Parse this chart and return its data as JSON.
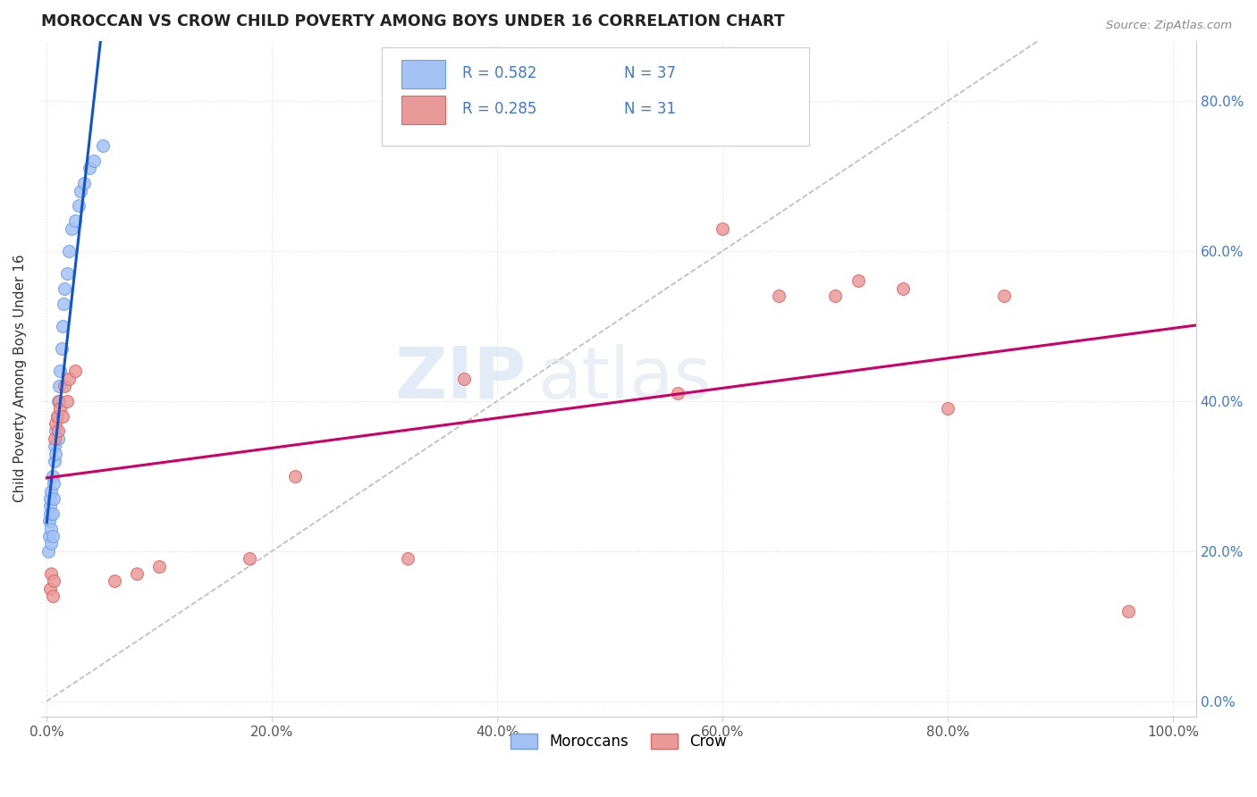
{
  "title": "MOROCCAN VS CROW CHILD POVERTY AMONG BOYS UNDER 16 CORRELATION CHART",
  "source": "Source: ZipAtlas.com",
  "xlabel": "",
  "ylabel": "Child Poverty Among Boys Under 16",
  "xlim": [
    -0.005,
    1.02
  ],
  "ylim": [
    -0.02,
    0.88
  ],
  "x_ticks": [
    0.0,
    0.2,
    0.4,
    0.6,
    0.8,
    1.0
  ],
  "x_tick_labels": [
    "0.0%",
    "20.0%",
    "40.0%",
    "60.0%",
    "80.0%",
    "100.0%"
  ],
  "y_ticks": [
    0.0,
    0.2,
    0.4,
    0.6,
    0.8
  ],
  "y_tick_labels": [
    "0.0%",
    "20.0%",
    "40.0%",
    "60.0%",
    "80.0%"
  ],
  "moroccan_R": "0.582",
  "moroccan_N": "37",
  "crow_R": "0.285",
  "crow_N": "31",
  "blue_scatter_color": "#a4c2f4",
  "blue_scatter_edge": "#6d9eeb",
  "pink_scatter_color": "#ea9999",
  "pink_scatter_edge": "#e06666",
  "blue_line_color": "#1155cc",
  "pink_line_color": "#cc0066",
  "diag_color": "#bbbbbb",
  "grid_color": "#dddddd",
  "legend_label1": "Moroccans",
  "legend_label2": "Crow",
  "watermark_text": "ZIP",
  "watermark_text2": "atlas",
  "moroccan_x": [
    0.001,
    0.002,
    0.002,
    0.003,
    0.003,
    0.003,
    0.004,
    0.004,
    0.004,
    0.005,
    0.005,
    0.005,
    0.006,
    0.006,
    0.007,
    0.007,
    0.008,
    0.008,
    0.009,
    0.01,
    0.01,
    0.011,
    0.012,
    0.013,
    0.014,
    0.015,
    0.016,
    0.018,
    0.02,
    0.022,
    0.025,
    0.028,
    0.03,
    0.033,
    0.038,
    0.042,
    0.05
  ],
  "moroccan_y": [
    0.2,
    0.22,
    0.24,
    0.25,
    0.26,
    0.27,
    0.21,
    0.23,
    0.28,
    0.22,
    0.25,
    0.3,
    0.27,
    0.29,
    0.32,
    0.34,
    0.33,
    0.36,
    0.38,
    0.35,
    0.4,
    0.42,
    0.44,
    0.47,
    0.5,
    0.53,
    0.55,
    0.57,
    0.6,
    0.63,
    0.64,
    0.66,
    0.68,
    0.69,
    0.71,
    0.72,
    0.74
  ],
  "crow_x": [
    0.003,
    0.004,
    0.005,
    0.006,
    0.007,
    0.008,
    0.009,
    0.01,
    0.011,
    0.012,
    0.014,
    0.016,
    0.018,
    0.02,
    0.025,
    0.06,
    0.08,
    0.1,
    0.18,
    0.22,
    0.32,
    0.37,
    0.56,
    0.6,
    0.65,
    0.7,
    0.72,
    0.76,
    0.8,
    0.85,
    0.96
  ],
  "crow_y": [
    0.15,
    0.17,
    0.14,
    0.16,
    0.35,
    0.37,
    0.38,
    0.36,
    0.4,
    0.39,
    0.38,
    0.42,
    0.4,
    0.43,
    0.44,
    0.16,
    0.17,
    0.18,
    0.19,
    0.3,
    0.19,
    0.43,
    0.41,
    0.63,
    0.54,
    0.54,
    0.56,
    0.55,
    0.39,
    0.54,
    0.12
  ]
}
